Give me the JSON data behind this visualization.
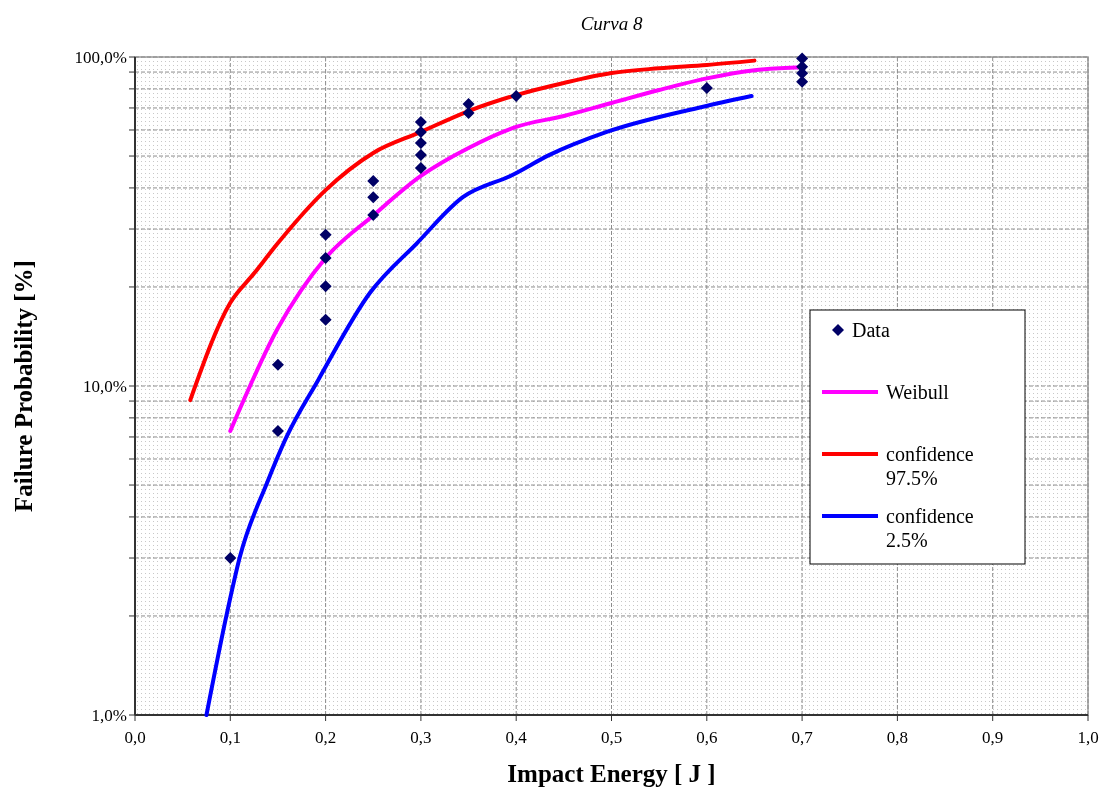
{
  "chart_data": {
    "type": "line",
    "title": "Curva 8",
    "xlabel": "Impact Energy [ J ]",
    "ylabel": "Failure Probability [%]",
    "log": "y",
    "grid": true,
    "legend": "right",
    "xlim": [
      0,
      1
    ],
    "xticks": [
      {
        "value": 0,
        "label": "0,0"
      },
      {
        "value": 0.1,
        "label": "0,1"
      },
      {
        "value": 0.2,
        "label": "0,2"
      },
      {
        "value": 0.3,
        "label": "0,3"
      },
      {
        "value": 0.4,
        "label": "0,4"
      },
      {
        "value": 0.5,
        "label": "0,5"
      },
      {
        "value": 0.6,
        "label": "0,6"
      },
      {
        "value": 0.7,
        "label": "0,7"
      },
      {
        "value": 0.8,
        "label": "0,8"
      },
      {
        "value": 0.9,
        "label": "0,9"
      },
      {
        "value": 1,
        "label": "1,0"
      }
    ],
    "ylim": [
      1,
      100
    ],
    "yticks": [
      {
        "value": 1,
        "label": "1,0%"
      },
      {
        "value": 2,
        "label": null
      },
      {
        "value": 3,
        "label": null
      },
      {
        "value": 4,
        "label": null
      },
      {
        "value": 5,
        "label": null
      },
      {
        "value": 6,
        "label": null
      },
      {
        "value": 7,
        "label": null
      },
      {
        "value": 8,
        "label": null
      },
      {
        "value": 9,
        "label": null
      },
      {
        "value": 10,
        "label": "10,0%"
      },
      {
        "value": 20,
        "label": null
      },
      {
        "value": 30,
        "label": null
      },
      {
        "value": 40,
        "label": null
      },
      {
        "value": 50,
        "label": null
      },
      {
        "value": 60,
        "label": null
      },
      {
        "value": 70,
        "label": null
      },
      {
        "value": 80,
        "label": null
      },
      {
        "value": 90,
        "label": null
      },
      {
        "value": 100,
        "label": "100,0%"
      }
    ],
    "series": [
      {
        "name": "Data",
        "type": "scatter",
        "marker": "diamond",
        "color": "#000066",
        "x": [
          0.1,
          0.15,
          0.15,
          0.2,
          0.2,
          0.2,
          0.2,
          0.25,
          0.25,
          0.25,
          0.3,
          0.3,
          0.3,
          0.3,
          0.3,
          0.35,
          0.35,
          0.4,
          0.6,
          0.7,
          0.7,
          0.7,
          0.7
        ],
        "values": [
          3.0,
          11.6,
          7.3,
          28.8,
          24.5,
          20.1,
          15.9,
          42,
          37.5,
          33.1,
          63.4,
          59.2,
          54.8,
          50.4,
          46.0,
          72,
          67.6,
          76.1,
          80.5,
          98.9,
          93.4,
          89.2,
          84.1
        ]
      },
      {
        "name": "Weibull",
        "color": "#ff00ff",
        "x": [
          0.1,
          0.15,
          0.2,
          0.25,
          0.3,
          0.35,
          0.4,
          0.45,
          0.5,
          0.55,
          0.6,
          0.65,
          0.7
        ],
        "values": [
          7.3,
          15,
          24.5,
          33,
          43.5,
          52.9,
          61.3,
          66.2,
          72.5,
          79.4,
          86.1,
          91.2,
          93
        ]
      },
      {
        "name": "confidence 97.5%",
        "color": "#ff0000",
        "x": [
          0.058,
          0.1,
          0.125,
          0.15,
          0.2,
          0.25,
          0.3,
          0.35,
          0.4,
          0.45,
          0.5,
          0.55,
          0.6,
          0.65
        ],
        "values": [
          9.06,
          17.9,
          22,
          27.2,
          39.4,
          51.1,
          59.2,
          68.5,
          76.6,
          83.4,
          89.4,
          92.4,
          94.6,
          97.5
        ]
      },
      {
        "name": "confidence 2.5%",
        "color": "#0000ff",
        "x": [
          0.075,
          0.0965,
          0.11,
          0.1385,
          0.159,
          0.192,
          0.2466,
          0.296,
          0.344,
          0.396,
          0.435,
          0.495,
          0.595,
          0.647
        ],
        "values": [
          1.0,
          2.04,
          3.02,
          5.07,
          7.0,
          10.4,
          19.2,
          27.2,
          37.5,
          43.8,
          50.4,
          59.2,
          70.5,
          76.1
        ]
      }
    ]
  }
}
